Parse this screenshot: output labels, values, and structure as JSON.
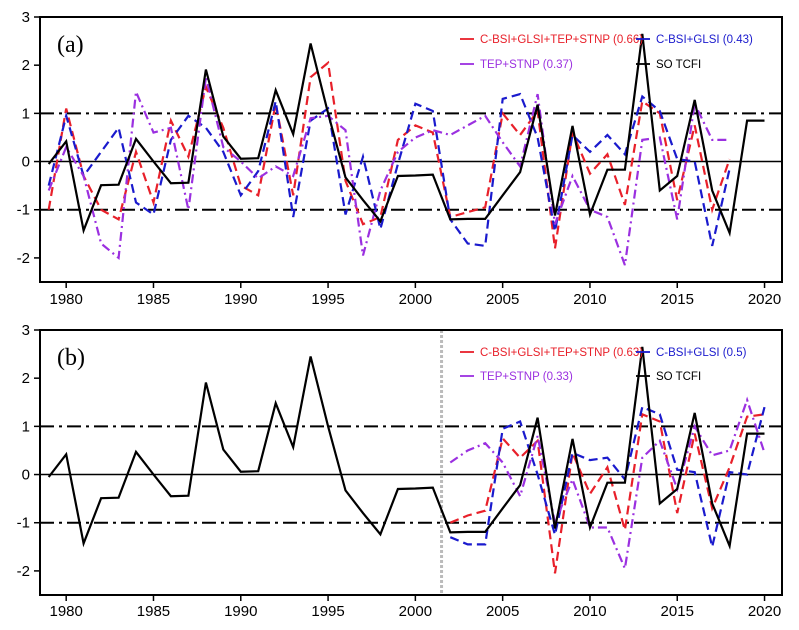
{
  "chart_data": [
    {
      "type": "line",
      "panel_label": "(a)",
      "title": "",
      "xlabel": "",
      "ylabel": "",
      "xlim": [
        1978.5,
        2021
      ],
      "ylim": [
        -2.5,
        3
      ],
      "x_ticks": [
        1980,
        1985,
        1990,
        1995,
        2000,
        2005,
        2010,
        2015,
        2020
      ],
      "y_ticks": [
        -2,
        -1,
        0,
        1,
        2,
        3
      ],
      "reference_lines": [
        {
          "y": 1,
          "style": "dash-dot"
        },
        {
          "y": 0,
          "style": "solid"
        },
        {
          "y": -1,
          "style": "dash-dot"
        }
      ],
      "legend": [
        {
          "label": "C-BSI+GLSI+TEP+STNP (0.66)",
          "color": "#e8202a"
        },
        {
          "label": "C-BSI+GLSI (0.43)",
          "color": "#1a1acd"
        },
        {
          "label": "TEP+STNP (0.37)",
          "color": "#9b30e0"
        },
        {
          "label": "SO TCFI",
          "color": "#000000"
        }
      ],
      "series": [
        {
          "name": "SO TCFI",
          "color": "#000000",
          "style": "solid",
          "x_start": 1979,
          "values": [
            -0.05,
            0.42,
            -1.43,
            -0.49,
            -0.48,
            0.47,
            0.0,
            -0.45,
            -0.44,
            1.91,
            0.52,
            0.06,
            0.07,
            1.48,
            0.57,
            2.45,
            1.0,
            -0.33,
            -0.8,
            -1.24,
            -0.3,
            -0.29,
            -0.27,
            -1.2,
            -1.19,
            -1.19,
            -0.7,
            -0.22,
            1.18,
            -1.12,
            0.74,
            -1.1,
            -0.17,
            -0.17,
            2.65,
            -0.6,
            -0.3,
            1.28,
            -0.6,
            -1.48,
            0.85,
            0.85
          ]
        },
        {
          "name": "C-BSI+GLSI+TEP+STNP",
          "color": "#e8202a",
          "style": "dash",
          "x_start": 1979,
          "values": [
            -1.0,
            1.1,
            -0.3,
            -1.0,
            -1.2,
            0.2,
            -0.85,
            0.85,
            0.1,
            1.55,
            0.7,
            -0.5,
            -0.7,
            1.2,
            -0.7,
            1.75,
            2.05,
            -0.4,
            -1.3,
            -1.15,
            0.45,
            0.75,
            0.6,
            -1.15,
            -1.05,
            -0.95,
            1.0,
            0.55,
            1.05,
            -1.8,
            0.6,
            -0.25,
            0.15,
            -0.9,
            1.25,
            1.0,
            -0.8,
            0.75,
            -1.0,
            0.05
          ]
        },
        {
          "name": "C-BSI+GLSI",
          "color": "#1a1acd",
          "style": "dash",
          "x_start": 1979,
          "values": [
            -0.5,
            0.95,
            -0.3,
            0.2,
            0.7,
            -0.85,
            -1.1,
            0.45,
            0.95,
            0.7,
            0.2,
            -0.7,
            -0.2,
            1.25,
            -1.15,
            0.85,
            1.1,
            -1.1,
            0.1,
            -1.4,
            -0.05,
            1.2,
            1.05,
            -1.2,
            -1.7,
            -1.75,
            1.3,
            1.4,
            0.5,
            -1.45,
            0.55,
            0.2,
            0.55,
            0.15,
            1.35,
            1.05,
            0.05,
            0.0,
            -1.75,
            -0.15
          ]
        },
        {
          "name": "TEP+STNP",
          "color": "#9b30e0",
          "style": "dash-dot",
          "x_start": 1979,
          "values": [
            -0.6,
            0.3,
            -0.3,
            -1.7,
            -2.0,
            1.45,
            0.6,
            0.7,
            -1.0,
            1.75,
            0.3,
            0.0,
            -0.35,
            -0.1,
            -0.3,
            0.9,
            0.95,
            0.65,
            -1.95,
            -0.6,
            0.2,
            0.5,
            0.65,
            0.55,
            0.75,
            0.95,
            0.4,
            -0.1,
            1.4,
            -1.3,
            -0.3,
            -1.0,
            -1.15,
            -2.15,
            0.45,
            0.5,
            -1.2,
            1.2,
            0.45,
            0.45
          ]
        }
      ]
    },
    {
      "type": "line",
      "panel_label": "(b)",
      "title": "",
      "xlabel": "",
      "ylabel": "",
      "xlim": [
        1978.5,
        2021
      ],
      "ylim": [
        -2.5,
        3
      ],
      "x_ticks": [
        1980,
        1985,
        1990,
        1995,
        2000,
        2005,
        2010,
        2015,
        2020
      ],
      "y_ticks": [
        -2,
        -1,
        0,
        1,
        2,
        3
      ],
      "reference_lines": [
        {
          "y": 1,
          "style": "dash-dot"
        },
        {
          "y": 0,
          "style": "solid"
        },
        {
          "y": -1,
          "style": "dash-dot"
        }
      ],
      "vertical_marker": {
        "x": 2001.5,
        "style": "dotted",
        "color": "#bbbbbb"
      },
      "legend": [
        {
          "label": "C-BSI+GLSI+TEP+STNP (0.63)",
          "color": "#e8202a"
        },
        {
          "label": "C-BSI+GLSI (0.5)",
          "color": "#1a1acd"
        },
        {
          "label": "TEP+STNP (0.33)",
          "color": "#9b30e0"
        },
        {
          "label": "SO TCFI",
          "color": "#000000"
        }
      ],
      "series": [
        {
          "name": "SO TCFI",
          "color": "#000000",
          "style": "solid",
          "x_start": 1979,
          "values": [
            -0.05,
            0.42,
            -1.43,
            -0.49,
            -0.48,
            0.47,
            0.0,
            -0.45,
            -0.44,
            1.91,
            0.52,
            0.06,
            0.07,
            1.48,
            0.57,
            2.45,
            1.0,
            -0.33,
            -0.8,
            -1.24,
            -0.3,
            -0.29,
            -0.27,
            -1.2,
            -1.19,
            -1.19,
            -0.7,
            -0.22,
            1.18,
            -1.12,
            0.74,
            -1.1,
            -0.17,
            -0.17,
            2.65,
            -0.6,
            -0.3,
            1.28,
            -0.6,
            -1.48,
            0.85,
            0.85
          ]
        },
        {
          "name": "C-BSI+GLSI+TEP+STNP",
          "color": "#e8202a",
          "style": "dash",
          "x_start": 2002,
          "values": [
            -1.0,
            -0.85,
            -0.75,
            0.75,
            0.35,
            0.7,
            -2.05,
            0.45,
            -0.4,
            0.15,
            -1.15,
            1.25,
            1.1,
            -0.8,
            0.85,
            -0.7,
            0.15,
            1.2,
            1.25
          ]
        },
        {
          "name": "C-BSI+GLSI",
          "color": "#1a1acd",
          "style": "dash",
          "x_start": 2002,
          "values": [
            -1.3,
            -1.45,
            -1.45,
            0.95,
            1.1,
            0.0,
            -1.25,
            0.45,
            0.3,
            0.35,
            -0.1,
            1.4,
            1.25,
            0.1,
            0.05,
            -1.5,
            0.05,
            0.0,
            1.4
          ]
        },
        {
          "name": "TEP+STNP",
          "color": "#9b30e0",
          "style": "dash-dot",
          "x_start": 2002,
          "values": [
            0.25,
            0.5,
            0.65,
            0.25,
            -0.45,
            0.8,
            -1.0,
            -0.1,
            -1.1,
            -1.1,
            -1.95,
            0.35,
            0.7,
            -0.3,
            1.0,
            0.4,
            0.5,
            1.55,
            0.45
          ]
        }
      ]
    }
  ]
}
